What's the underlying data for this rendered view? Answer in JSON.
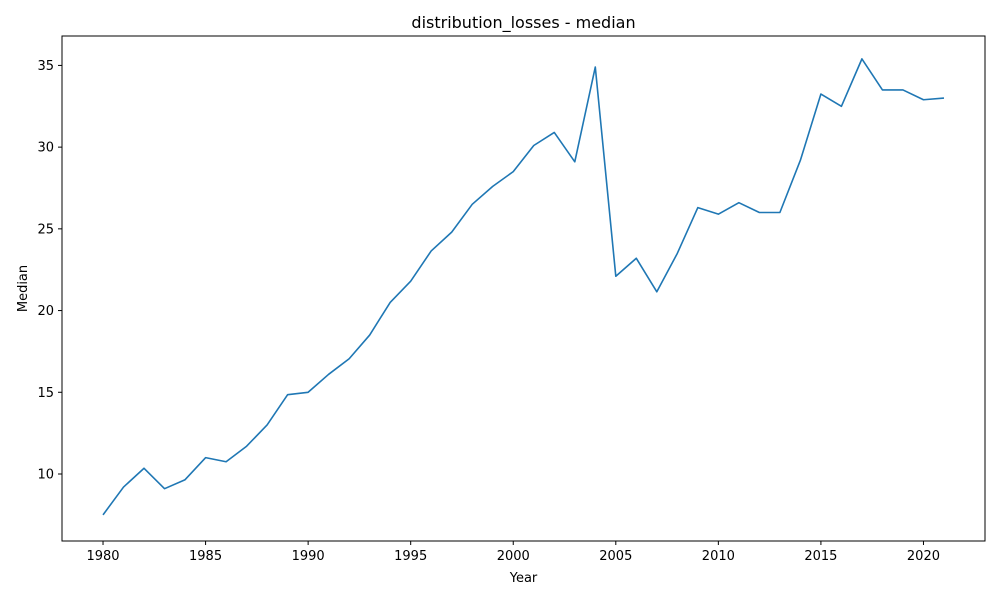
{
  "chart_data": {
    "type": "line",
    "title": "distribution_losses - median",
    "xlabel": "Year",
    "ylabel": "Median",
    "xlim": [
      1978,
      2023
    ],
    "ylim": [
      5.9,
      36.8
    ],
    "grid": false,
    "x_ticks": [
      1980,
      1985,
      1990,
      1995,
      2000,
      2005,
      2010,
      2015,
      2020
    ],
    "y_ticks": [
      10,
      15,
      20,
      25,
      30,
      35
    ],
    "line_color": "#1f77b4",
    "series": [
      {
        "name": "median",
        "x": [
          1980,
          1981,
          1982,
          1983,
          1984,
          1985,
          1986,
          1987,
          1988,
          1989,
          1990,
          1991,
          1992,
          1993,
          1994,
          1995,
          1996,
          1997,
          1998,
          1999,
          2000,
          2001,
          2002,
          2003,
          2004,
          2005,
          2006,
          2007,
          2008,
          2009,
          2010,
          2011,
          2012,
          2013,
          2014,
          2015,
          2016,
          2017,
          2018,
          2019,
          2020,
          2021
        ],
        "values": [
          7.5,
          9.2,
          10.35,
          9.1,
          9.65,
          11.0,
          10.75,
          11.7,
          13.0,
          14.85,
          15.0,
          16.1,
          17.05,
          18.5,
          20.5,
          21.8,
          23.65,
          24.8,
          26.5,
          27.6,
          28.5,
          30.1,
          30.9,
          29.1,
          34.9,
          22.1,
          23.2,
          21.15,
          23.5,
          26.3,
          25.9,
          26.6,
          26.0,
          26.0,
          29.2,
          33.25,
          32.5,
          35.4,
          33.5,
          33.5,
          32.9,
          33.0
        ]
      }
    ]
  }
}
